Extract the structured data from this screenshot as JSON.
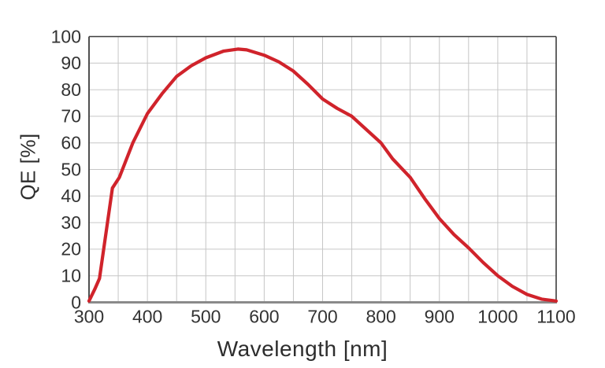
{
  "page": {
    "background_color": "#ffffff"
  },
  "chart_data": {
    "type": "line",
    "title": "",
    "xlabel": "Wavelength [nm]",
    "ylabel": "QE [%]",
    "xlim": [
      300,
      1100
    ],
    "ylim": [
      0,
      100
    ],
    "x_major_ticks": [
      300,
      400,
      500,
      600,
      700,
      800,
      900,
      1000,
      1100
    ],
    "x_grid_step_nm": 50,
    "y_ticks": [
      0,
      10,
      20,
      30,
      40,
      50,
      60,
      70,
      80,
      90,
      100
    ],
    "grid": "on",
    "legend": "none",
    "line_color": "#d0232b",
    "line_width": 4.2,
    "grid_color": "#c6c6c6",
    "box_color": "#3d3d3d",
    "baseline_color": "#8a8a8a",
    "tick_text_color": "#333333",
    "series": [
      {
        "name": "QE",
        "points": [
          [
            300,
            0.5
          ],
          [
            310,
            5
          ],
          [
            318,
            9
          ],
          [
            340,
            43
          ],
          [
            352,
            47
          ],
          [
            375,
            60
          ],
          [
            400,
            71
          ],
          [
            425,
            78.5
          ],
          [
            450,
            85
          ],
          [
            475,
            89
          ],
          [
            500,
            92
          ],
          [
            530,
            94.5
          ],
          [
            555,
            95.3
          ],
          [
            570,
            95
          ],
          [
            600,
            93
          ],
          [
            625,
            90.5
          ],
          [
            650,
            87
          ],
          [
            675,
            82
          ],
          [
            700,
            76.5
          ],
          [
            725,
            73
          ],
          [
            750,
            70
          ],
          [
            775,
            65
          ],
          [
            800,
            60
          ],
          [
            820,
            54
          ],
          [
            850,
            47
          ],
          [
            875,
            39
          ],
          [
            900,
            31.5
          ],
          [
            925,
            25.5
          ],
          [
            950,
            20.5
          ],
          [
            975,
            15
          ],
          [
            1000,
            10
          ],
          [
            1025,
            6
          ],
          [
            1050,
            3
          ],
          [
            1075,
            1.2
          ],
          [
            1100,
            0.5
          ]
        ]
      }
    ]
  }
}
